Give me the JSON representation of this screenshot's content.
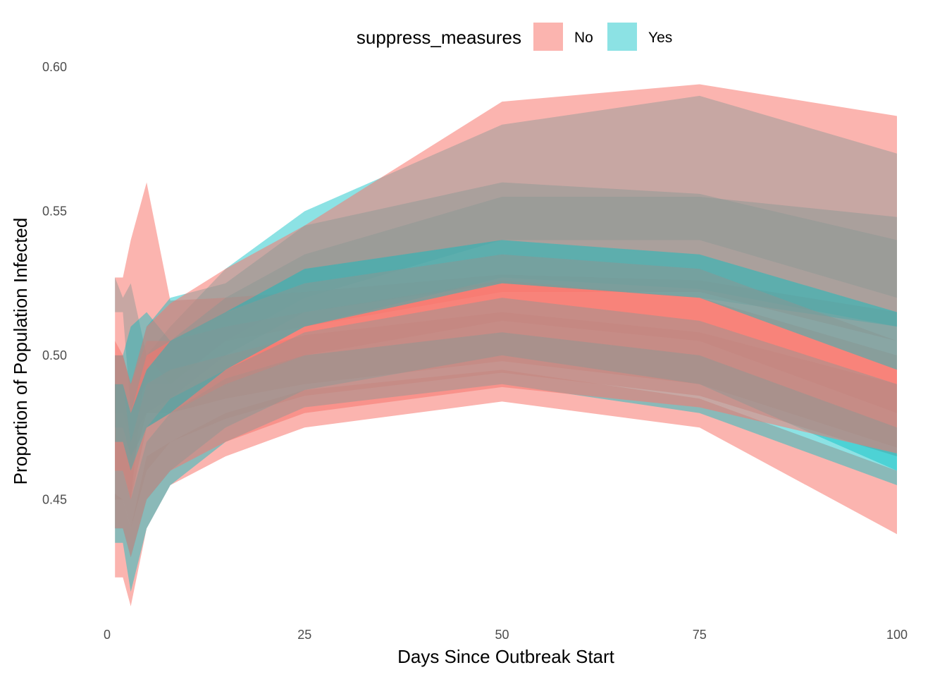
{
  "chart_data": {
    "type": "area",
    "xlabel": "Days Since Outbreak Start",
    "ylabel": "Proportion of Population Infected",
    "xlim": [
      0,
      100
    ],
    "ylim": [
      0.41,
      0.6
    ],
    "xticks": [
      0,
      25,
      50,
      75,
      100
    ],
    "xtick_labels": [
      "0",
      "25",
      "50",
      "75",
      "100"
    ],
    "yticks": [
      0.45,
      0.5,
      0.55,
      0.6
    ],
    "ytick_labels": [
      "0.45",
      "0.50",
      "0.55",
      "0.60"
    ],
    "grid": false,
    "legend": {
      "title": "suppress_measures",
      "position": "top",
      "entries": [
        {
          "label": "No",
          "color": "#F8766D"
        },
        {
          "label": "Yes",
          "color": "#00BFC4"
        }
      ]
    },
    "series": [
      {
        "name": "No",
        "color": "#F8766D",
        "band_opacity": 0.55,
        "bands": [
          {
            "x": [
              1,
              2,
              3,
              5,
              8,
              15,
              25,
              50,
              75,
              100
            ],
            "lower": [
              0.423,
              0.423,
              0.413,
              0.44,
              0.455,
              0.465,
              0.475,
              0.484,
              0.475,
              0.438
            ],
            "upper": [
              0.452,
              0.45,
              0.44,
              0.465,
              0.47,
              0.48,
              0.488,
              0.495,
              0.485,
              0.46
            ]
          },
          {
            "x": [
              1,
              2,
              3,
              5,
              8,
              15,
              25,
              50,
              75,
              100
            ],
            "lower": [
              0.46,
              0.46,
              0.45,
              0.5,
              0.49,
              0.505,
              0.51,
              0.522,
              0.522,
              0.505
            ],
            "upper": [
              0.527,
              0.527,
              0.54,
              0.56,
              0.519,
              0.52,
              0.522,
              0.528,
              0.526,
              0.515
            ]
          },
          {
            "x": [
              1,
              2,
              3,
              5,
              8,
              15,
              25,
              50,
              75,
              100
            ],
            "lower": [
              0.47,
              0.47,
              0.46,
              0.48,
              0.48,
              0.485,
              0.49,
              0.498,
              0.49,
              0.468
            ],
            "upper": [
              0.5,
              0.5,
              0.49,
              0.505,
              0.505,
              0.51,
              0.515,
              0.526,
              0.52,
              0.5
            ]
          },
          {
            "x": [
              1,
              2,
              3,
              5,
              8,
              15,
              25,
              50,
              75,
              100
            ],
            "lower": [
              0.45,
              0.45,
              0.44,
              0.46,
              0.47,
              0.478,
              0.486,
              0.494,
              0.486,
              0.465
            ],
            "upper": [
              0.49,
              0.49,
              0.47,
              0.49,
              0.495,
              0.5,
              0.507,
              0.515,
              0.508,
              0.49
            ]
          },
          {
            "x": [
              1,
              2,
              3,
              5,
              8,
              15,
              25,
              50,
              75,
              100
            ],
            "lower": [
              0.46,
              0.46,
              0.45,
              0.475,
              0.48,
              0.49,
              0.5,
              0.512,
              0.505,
              0.48
            ],
            "upper": [
              0.49,
              0.49,
              0.48,
              0.5,
              0.505,
              0.515,
              0.525,
              0.535,
              0.53,
              0.505
            ]
          },
          {
            "x": [
              1,
              2,
              3,
              5,
              8,
              15,
              25,
              50,
              75,
              100
            ],
            "lower": [
              0.44,
              0.44,
              0.43,
              0.45,
              0.46,
              0.47,
              0.48,
              0.489,
              0.482,
              0.466
            ],
            "upper": [
              0.505,
              0.5,
              0.49,
              0.51,
              0.518,
              0.53,
              0.545,
              0.588,
              0.594,
              0.583
            ]
          }
        ]
      },
      {
        "name": "Yes",
        "color": "#00BFC4",
        "band_opacity": 0.45,
        "bands": [
          {
            "x": [
              1,
              2,
              3,
              5,
              8,
              15,
              25,
              50,
              75,
              100
            ],
            "lower": [
              0.515,
              0.515,
              0.48,
              0.49,
              0.49,
              0.505,
              0.52,
              0.54,
              0.54,
              0.52
            ],
            "upper": [
              0.527,
              0.52,
              0.525,
              0.5,
              0.51,
              0.53,
              0.55,
              0.58,
              0.59,
              0.57
            ]
          },
          {
            "x": [
              1,
              2,
              3,
              5,
              8,
              15,
              25,
              50,
              75,
              100
            ],
            "lower": [
              0.48,
              0.48,
              0.47,
              0.48,
              0.485,
              0.5,
              0.515,
              0.525,
              0.52,
              0.51
            ],
            "upper": [
              0.5,
              0.5,
              0.51,
              0.515,
              0.505,
              0.52,
              0.535,
              0.555,
              0.555,
              0.548
            ]
          },
          {
            "x": [
              1,
              2,
              3,
              5,
              8,
              15,
              25,
              50,
              75,
              100
            ],
            "lower": [
              0.475,
              0.475,
              0.465,
              0.475,
              0.48,
              0.495,
              0.51,
              0.527,
              0.523,
              0.51
            ],
            "upper": [
              0.5,
              0.5,
              0.49,
              0.51,
              0.52,
              0.525,
              0.545,
              0.56,
              0.556,
              0.54
            ]
          },
          {
            "x": [
              1,
              2,
              3,
              5,
              8,
              15,
              25,
              50,
              75,
              100
            ],
            "lower": [
              0.435,
              0.435,
              0.418,
              0.44,
              0.455,
              0.47,
              0.482,
              0.49,
              0.48,
              0.455
            ],
            "upper": [
              0.46,
              0.46,
              0.45,
              0.47,
              0.48,
              0.492,
              0.5,
              0.508,
              0.5,
              0.475
            ]
          },
          {
            "x": [
              1,
              2,
              3,
              5,
              8,
              15,
              25,
              50,
              75,
              100
            ],
            "lower": [
              0.44,
              0.44,
              0.43,
              0.45,
              0.46,
              0.475,
              0.488,
              0.5,
              0.49,
              0.46
            ],
            "upper": [
              0.47,
              0.47,
              0.46,
              0.475,
              0.485,
              0.495,
              0.508,
              0.52,
              0.512,
              0.49
            ]
          },
          {
            "x": [
              1,
              2,
              3,
              5,
              8,
              15,
              25,
              50,
              75,
              100
            ],
            "lower": [
              0.47,
              0.47,
              0.46,
              0.475,
              0.48,
              0.495,
              0.51,
              0.525,
              0.52,
              0.495
            ],
            "upper": [
              0.49,
              0.49,
              0.48,
              0.495,
              0.505,
              0.515,
              0.53,
              0.54,
              0.535,
              0.515
            ]
          }
        ]
      }
    ]
  }
}
